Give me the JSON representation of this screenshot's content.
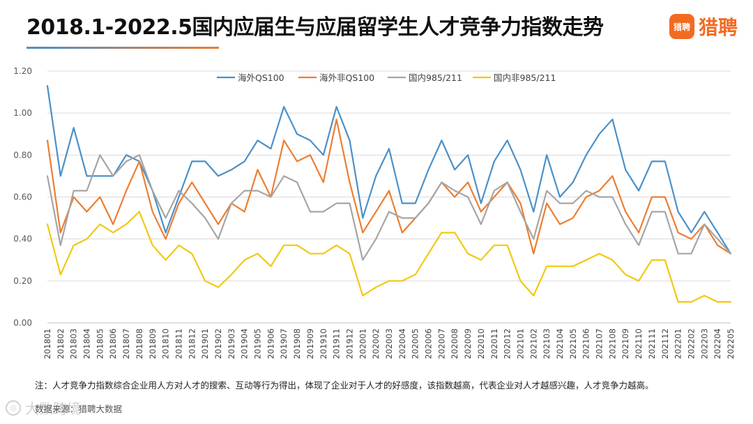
{
  "header": {
    "title": "2018.1-2022.5国内应届生与应届留学生人才竞争力指数走势",
    "underline_colors": [
      "#4a90c8",
      "#ed7d31"
    ]
  },
  "brand": {
    "icon_text": "猎聘",
    "name": "猎聘",
    "color": "#f26b21"
  },
  "footer": {
    "note": "注：人才竞争力指数综合企业用人方对人才的搜索、互动等行为得出，体现了企业对于人才的好感度，该指数越高，代表企业对人才越感兴趣，人才竞争力越高。",
    "source": "数据来源：猎聘大数据",
    "watermark": "大数跨境",
    "watermark_icon": "circle-logo-icon"
  },
  "chart_data": {
    "type": "line",
    "title": "2018.1-2022.5国内应届生与应届留学生人才竞争力指数走势",
    "xlabel": "",
    "ylabel": "",
    "ylim": [
      0,
      1.2
    ],
    "yticks": [
      "0.00",
      "0.20",
      "0.40",
      "0.60",
      "0.80",
      "1.00",
      "1.20"
    ],
    "grid": true,
    "legend_position": "top",
    "categories": [
      "201801",
      "201802",
      "201803",
      "201804",
      "201805",
      "201806",
      "201807",
      "201808",
      "201809",
      "201810",
      "201811",
      "201812",
      "201901",
      "201902",
      "201903",
      "201904",
      "201905",
      "201906",
      "201907",
      "201908",
      "201909",
      "201910",
      "201911",
      "201912",
      "202001",
      "202002",
      "202003",
      "202004",
      "202005",
      "202006",
      "202007",
      "202008",
      "202009",
      "202010",
      "202011",
      "202012",
      "202101",
      "202102",
      "202103",
      "202104",
      "202105",
      "202106",
      "202107",
      "202108",
      "202109",
      "202110",
      "202111",
      "202112",
      "202201",
      "202202",
      "202203",
      "202204",
      "202205"
    ],
    "series": [
      {
        "name": "海外QS100",
        "color": "#4a90c8",
        "values": [
          1.13,
          0.7,
          0.93,
          0.7,
          0.7,
          0.7,
          0.8,
          0.77,
          0.63,
          0.43,
          0.6,
          0.77,
          0.77,
          0.7,
          0.73,
          0.77,
          0.87,
          0.83,
          1.03,
          0.9,
          0.87,
          0.8,
          1.03,
          0.87,
          0.5,
          0.7,
          0.83,
          0.57,
          0.57,
          0.73,
          0.87,
          0.73,
          0.8,
          0.57,
          0.77,
          0.87,
          0.73,
          0.53,
          0.8,
          0.6,
          0.67,
          0.8,
          0.9,
          0.97,
          0.73,
          0.63,
          0.77,
          0.77,
          0.53,
          0.43,
          0.53,
          0.43,
          0.33
        ]
      },
      {
        "name": "海外非QS100",
        "color": "#ed7d31",
        "values": [
          0.87,
          0.43,
          0.6,
          0.53,
          0.6,
          0.47,
          0.63,
          0.77,
          0.53,
          0.4,
          0.57,
          0.67,
          0.57,
          0.47,
          0.57,
          0.53,
          0.73,
          0.6,
          0.87,
          0.77,
          0.8,
          0.67,
          0.97,
          0.67,
          0.43,
          0.53,
          0.63,
          0.43,
          0.5,
          0.57,
          0.67,
          0.6,
          0.67,
          0.53,
          0.6,
          0.67,
          0.57,
          0.33,
          0.57,
          0.47,
          0.5,
          0.6,
          0.63,
          0.7,
          0.53,
          0.43,
          0.6,
          0.6,
          0.43,
          0.4,
          0.47,
          0.37,
          0.33
        ]
      },
      {
        "name": "国内985/211",
        "color": "#a5a5a5",
        "values": [
          0.7,
          0.37,
          0.63,
          0.63,
          0.8,
          0.7,
          0.77,
          0.8,
          0.63,
          0.5,
          0.63,
          0.57,
          0.5,
          0.4,
          0.57,
          0.63,
          0.63,
          0.6,
          0.7,
          0.67,
          0.53,
          0.53,
          0.57,
          0.57,
          0.3,
          0.4,
          0.53,
          0.5,
          0.5,
          0.57,
          0.67,
          0.63,
          0.6,
          0.47,
          0.63,
          0.67,
          0.53,
          0.4,
          0.63,
          0.57,
          0.57,
          0.63,
          0.6,
          0.6,
          0.47,
          0.37,
          0.53,
          0.53,
          0.33,
          0.33,
          0.47,
          0.4,
          0.33
        ]
      },
      {
        "name": "国内非985/211",
        "color": "#f2c811",
        "values": [
          0.47,
          0.23,
          0.37,
          0.4,
          0.47,
          0.43,
          0.47,
          0.53,
          0.37,
          0.3,
          0.37,
          0.33,
          0.2,
          0.17,
          0.23,
          0.3,
          0.33,
          0.27,
          0.37,
          0.37,
          0.33,
          0.33,
          0.37,
          0.33,
          0.13,
          0.17,
          0.2,
          0.2,
          0.23,
          0.33,
          0.43,
          0.43,
          0.33,
          0.3,
          0.37,
          0.37,
          0.2,
          0.13,
          0.27,
          0.27,
          0.27,
          0.3,
          0.33,
          0.3,
          0.23,
          0.2,
          0.3,
          0.3,
          0.1,
          0.1,
          0.13,
          0.1,
          0.1
        ]
      }
    ]
  }
}
